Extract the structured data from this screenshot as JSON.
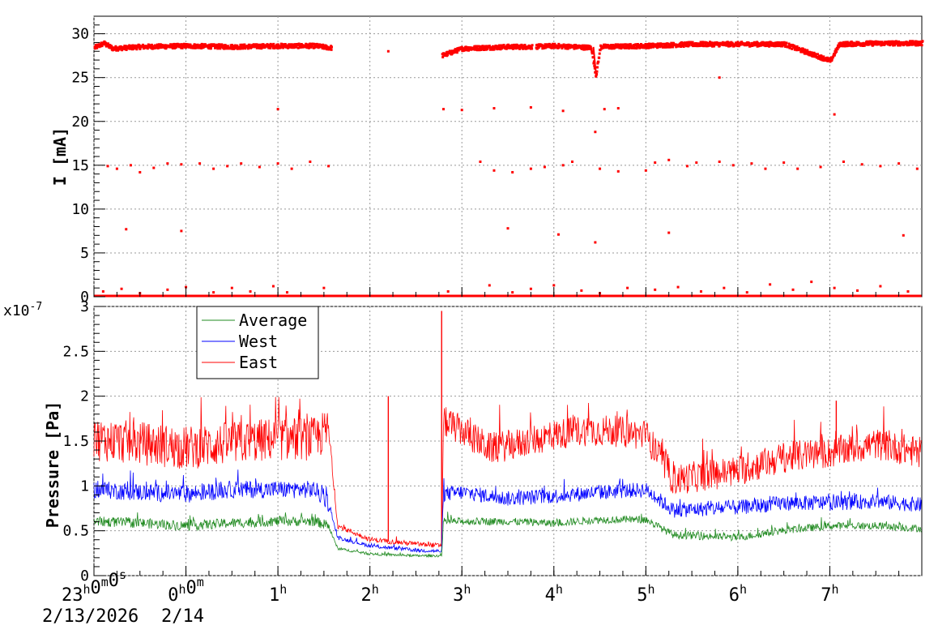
{
  "chart_data": [
    {
      "type": "scatter",
      "ylabel": "I [mA]",
      "ylim": [
        0,
        32
      ],
      "xlim_hours": [
        -1,
        8
      ],
      "yticks": [
        "0",
        "5",
        "10",
        "15",
        "20",
        "25",
        "30"
      ],
      "grid": true,
      "color": "#ff0000",
      "series": [
        {
          "main_beam": [
            [
              -1.0,
              28.5
            ],
            [
              -0.9,
              29.0
            ],
            [
              -0.8,
              28.4
            ],
            [
              -0.5,
              28.6
            ],
            [
              0.0,
              28.7
            ],
            [
              0.5,
              28.6
            ],
            [
              1.0,
              28.7
            ],
            [
              1.4,
              28.7
            ],
            [
              1.55,
              28.5
            ],
            [
              2.75,
              27.5
            ],
            [
              3.0,
              28.4
            ],
            [
              3.5,
              28.6
            ],
            [
              3.75,
              28.6
            ],
            [
              4.0,
              28.7
            ],
            [
              4.4,
              28.5
            ],
            [
              4.45,
              25.3
            ],
            [
              4.5,
              28.6
            ],
            [
              5.0,
              28.7
            ],
            [
              5.5,
              28.9
            ],
            [
              6.0,
              28.9
            ],
            [
              6.5,
              28.9
            ],
            [
              7.0,
              27.0
            ],
            [
              7.1,
              28.9
            ],
            [
              7.5,
              29.0
            ],
            [
              8.0,
              29.0
            ]
          ],
          "gap_hours": [
            [
              1.58,
              2.78
            ],
            [
              3.76,
              3.8
            ]
          ]
        }
      ],
      "scatter_points": [
        [
          -0.85,
          14.9
        ],
        [
          -0.75,
          14.6
        ],
        [
          -0.6,
          15.0
        ],
        [
          -0.5,
          14.2
        ],
        [
          -0.35,
          14.7
        ],
        [
          -0.2,
          15.2
        ],
        [
          -0.05,
          15.1
        ],
        [
          0.15,
          15.2
        ],
        [
          0.3,
          14.6
        ],
        [
          0.45,
          14.9
        ],
        [
          0.6,
          15.2
        ],
        [
          0.8,
          14.8
        ],
        [
          1.0,
          15.2
        ],
        [
          1.15,
          14.6
        ],
        [
          1.35,
          15.4
        ],
        [
          1.55,
          14.9
        ],
        [
          3.2,
          15.4
        ],
        [
          3.35,
          14.4
        ],
        [
          3.55,
          14.2
        ],
        [
          3.75,
          14.6
        ],
        [
          3.9,
          14.8
        ],
        [
          4.1,
          15.0
        ],
        [
          4.2,
          15.4
        ],
        [
          4.5,
          14.6
        ],
        [
          4.7,
          14.3
        ],
        [
          5.0,
          14.4
        ],
        [
          5.1,
          15.3
        ],
        [
          5.25,
          15.6
        ],
        [
          5.45,
          14.9
        ],
        [
          5.55,
          15.3
        ],
        [
          5.8,
          15.4
        ],
        [
          5.95,
          15.0
        ],
        [
          6.15,
          15.2
        ],
        [
          6.3,
          14.6
        ],
        [
          6.5,
          15.3
        ],
        [
          6.65,
          14.6
        ],
        [
          6.9,
          14.8
        ],
        [
          7.15,
          15.4
        ],
        [
          7.35,
          15.1
        ],
        [
          7.55,
          14.9
        ],
        [
          7.75,
          15.2
        ],
        [
          7.95,
          14.6
        ],
        [
          1.0,
          21.4
        ],
        [
          2.8,
          21.4
        ],
        [
          3.0,
          21.3
        ],
        [
          3.35,
          21.5
        ],
        [
          3.75,
          21.6
        ],
        [
          4.1,
          21.2
        ],
        [
          4.55,
          21.4
        ],
        [
          4.7,
          21.5
        ],
        [
          7.05,
          20.8
        ],
        [
          4.45,
          18.8
        ],
        [
          -0.65,
          7.7
        ],
        [
          -0.05,
          7.5
        ],
        [
          3.5,
          7.8
        ],
        [
          4.05,
          7.1
        ],
        [
          5.25,
          7.3
        ],
        [
          7.8,
          7.0
        ],
        [
          4.45,
          6.2
        ],
        [
          5.8,
          25.0
        ],
        [
          2.2,
          28.0
        ]
      ],
      "low_points": [
        [
          -0.9,
          0.6
        ],
        [
          -0.7,
          0.9
        ],
        [
          -0.5,
          0.4
        ],
        [
          -0.2,
          0.8
        ],
        [
          0.0,
          1.1
        ],
        [
          0.3,
          0.5
        ],
        [
          0.5,
          1.0
        ],
        [
          0.7,
          0.6
        ],
        [
          0.95,
          1.2
        ],
        [
          1.1,
          0.5
        ],
        [
          1.5,
          1.0
        ],
        [
          2.85,
          0.6
        ],
        [
          3.3,
          1.3
        ],
        [
          3.55,
          0.5
        ],
        [
          3.75,
          0.9
        ],
        [
          4.0,
          1.3
        ],
        [
          4.3,
          0.7
        ],
        [
          4.5,
          0.4
        ],
        [
          4.8,
          1.0
        ],
        [
          5.1,
          0.8
        ],
        [
          5.35,
          1.1
        ],
        [
          5.6,
          0.6
        ],
        [
          5.85,
          1.0
        ],
        [
          6.1,
          0.5
        ],
        [
          6.35,
          1.4
        ],
        [
          6.6,
          0.8
        ],
        [
          6.8,
          1.7
        ],
        [
          7.05,
          1.0
        ],
        [
          7.3,
          0.7
        ],
        [
          7.55,
          1.2
        ],
        [
          7.85,
          0.6
        ]
      ]
    },
    {
      "type": "line",
      "ylabel": "Pressure [Pa]",
      "scale_label": "x10",
      "scale_exponent": "-7",
      "ylim": [
        0,
        3.0
      ],
      "xlim_hours": [
        -1,
        8
      ],
      "yticks": [
        "0",
        "0.5",
        "1",
        "1.5",
        "2",
        "2.5",
        "3"
      ],
      "grid": true,
      "legend_position": "top-left",
      "series": [
        {
          "name": "Average",
          "color": "#228b22",
          "segments": [
            [
              -1.0,
              0.6
            ],
            [
              -0.5,
              0.58
            ],
            [
              0.0,
              0.55
            ],
            [
              0.5,
              0.58
            ],
            [
              1.0,
              0.6
            ],
            [
              1.4,
              0.6
            ],
            [
              1.55,
              0.55
            ],
            [
              1.65,
              0.3
            ],
            [
              2.0,
              0.24
            ],
            [
              2.5,
              0.22
            ],
            [
              2.78,
              0.22
            ],
            [
              2.8,
              0.6
            ],
            [
              3.5,
              0.6
            ],
            [
              4.0,
              0.58
            ],
            [
              4.5,
              0.62
            ],
            [
              5.0,
              0.62
            ],
            [
              5.3,
              0.45
            ],
            [
              6.0,
              0.42
            ],
            [
              6.5,
              0.5
            ],
            [
              7.0,
              0.55
            ],
            [
              7.5,
              0.55
            ],
            [
              8.0,
              0.52
            ]
          ],
          "noise_amplitude": [
            [
              -1.0,
              0.08
            ],
            [
              1.55,
              0.08
            ],
            [
              1.6,
              0.02
            ],
            [
              2.78,
              0.02
            ],
            [
              2.8,
              0.06
            ],
            [
              8.0,
              0.06
            ]
          ]
        },
        {
          "name": "West",
          "color": "#0000ff",
          "segments": [
            [
              -1.0,
              0.95
            ],
            [
              -0.5,
              0.92
            ],
            [
              0.0,
              0.9
            ],
            [
              0.5,
              0.95
            ],
            [
              1.0,
              0.95
            ],
            [
              1.4,
              0.95
            ],
            [
              1.55,
              0.8
            ],
            [
              1.65,
              0.42
            ],
            [
              2.0,
              0.33
            ],
            [
              2.5,
              0.28
            ],
            [
              2.78,
              0.27
            ],
            [
              2.8,
              0.9
            ],
            [
              3.0,
              0.92
            ],
            [
              3.5,
              0.85
            ],
            [
              4.0,
              0.88
            ],
            [
              4.5,
              0.92
            ],
            [
              5.0,
              0.95
            ],
            [
              5.3,
              0.72
            ],
            [
              6.0,
              0.75
            ],
            [
              6.5,
              0.8
            ],
            [
              7.0,
              0.8
            ],
            [
              7.5,
              0.82
            ],
            [
              8.0,
              0.78
            ]
          ],
          "noise_amplitude": [
            [
              -1.0,
              0.14
            ],
            [
              1.55,
              0.14
            ],
            [
              1.6,
              0.03
            ],
            [
              2.78,
              0.03
            ],
            [
              2.8,
              0.12
            ],
            [
              8.0,
              0.12
            ]
          ]
        },
        {
          "name": "East",
          "color": "#ff0000",
          "segments": [
            [
              -1.0,
              1.5
            ],
            [
              -0.5,
              1.45
            ],
            [
              0.0,
              1.4
            ],
            [
              0.5,
              1.45
            ],
            [
              1.0,
              1.5
            ],
            [
              1.4,
              1.5
            ],
            [
              1.55,
              1.6
            ],
            [
              1.65,
              0.55
            ],
            [
              2.0,
              0.4
            ],
            [
              2.2,
              0.38
            ],
            [
              2.5,
              0.35
            ],
            [
              2.78,
              0.33
            ],
            [
              2.8,
              1.7
            ],
            [
              3.0,
              1.6
            ],
            [
              3.3,
              1.4
            ],
            [
              3.6,
              1.45
            ],
            [
              4.0,
              1.55
            ],
            [
              4.3,
              1.6
            ],
            [
              4.6,
              1.6
            ],
            [
              5.0,
              1.55
            ],
            [
              5.3,
              1.05
            ],
            [
              6.0,
              1.15
            ],
            [
              6.5,
              1.3
            ],
            [
              7.0,
              1.35
            ],
            [
              7.5,
              1.45
            ],
            [
              8.0,
              1.35
            ]
          ],
          "spikes": [
            [
              2.2,
              2.0
            ],
            [
              2.78,
              2.95
            ],
            [
              7.07,
              1.95
            ]
          ],
          "noise_amplitude": [
            [
              -1.0,
              0.35
            ],
            [
              1.55,
              0.35
            ],
            [
              1.6,
              0.04
            ],
            [
              2.78,
              0.04
            ],
            [
              2.8,
              0.25
            ],
            [
              8.0,
              0.25
            ]
          ]
        }
      ]
    }
  ],
  "x_axis": {
    "tick_labels": [
      {
        "hour": -1,
        "label": "23",
        "sup_parts": [
          [
            "h",
            ""
          ],
          [
            "0",
            "m"
          ],
          [
            "0",
            "s"
          ]
        ]
      },
      {
        "hour": 0,
        "label": "0",
        "sup_parts": [
          [
            "h",
            ""
          ],
          [
            "0",
            "m"
          ]
        ]
      },
      {
        "hour": 1,
        "label": "1",
        "sup_parts": [
          [
            "h",
            ""
          ]
        ]
      },
      {
        "hour": 2,
        "label": "2",
        "sup_parts": [
          [
            "h",
            ""
          ]
        ]
      },
      {
        "hour": 3,
        "label": "3",
        "sup_parts": [
          [
            "h",
            ""
          ]
        ]
      },
      {
        "hour": 4,
        "label": "4",
        "sup_parts": [
          [
            "h",
            ""
          ]
        ]
      },
      {
        "hour": 5,
        "label": "5",
        "sup_parts": [
          [
            "h",
            ""
          ]
        ]
      },
      {
        "hour": 6,
        "label": "6",
        "sup_parts": [
          [
            "h",
            ""
          ]
        ]
      },
      {
        "hour": 7,
        "label": "7",
        "sup_parts": [
          [
            "h",
            ""
          ]
        ]
      }
    ],
    "date_start": "2/13/2026",
    "date_next": "2/14"
  },
  "legend": {
    "items": [
      "Average",
      "West",
      "East"
    ]
  }
}
